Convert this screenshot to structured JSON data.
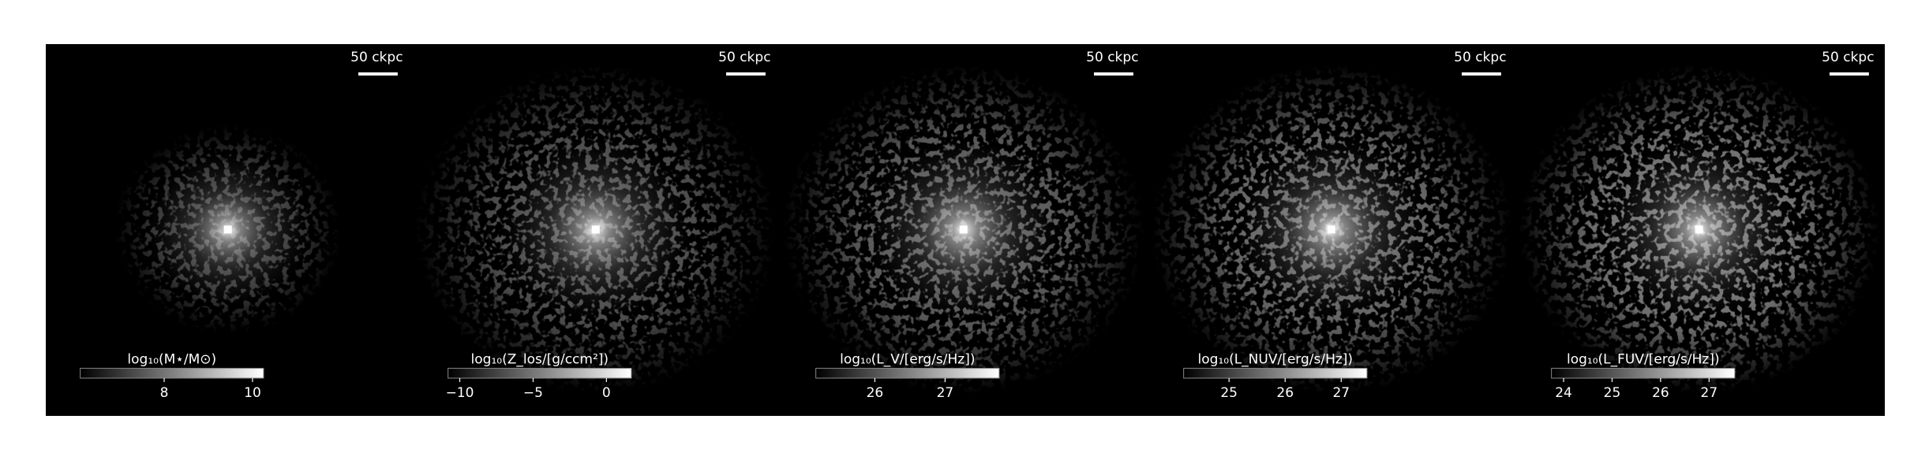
{
  "chart_data": [
    {
      "type": "image",
      "scalebar_label": "50 ckpc",
      "colorbar_label": "log₁₀(M⋆/M⊙)",
      "xlim": [
        6.1,
        10.25
      ],
      "xticks": [
        8,
        10
      ]
    },
    {
      "type": "image",
      "scalebar_label": "50 ckpc",
      "colorbar_label": "log₁₀(Z_los/[g/ccm²])",
      "xlim": [
        -10.8,
        1.7
      ],
      "xticks": [
        {
          "value": -10,
          "label": "−10"
        },
        {
          "value": -5,
          "label": "−5"
        },
        0
      ]
    },
    {
      "type": "image",
      "scalebar_label": "50 ckpc",
      "colorbar_label": "log₁₀(L_V/[erg/s/Hz])",
      "xlim": [
        25.16,
        27.77
      ],
      "xticks": [
        26,
        27
      ]
    },
    {
      "type": "image",
      "scalebar_label": "50 ckpc",
      "colorbar_label": "log₁₀(L_NUV/[erg/s/Hz])",
      "xlim": [
        24.19,
        27.46
      ],
      "xticks": [
        25,
        26,
        27
      ]
    },
    {
      "type": "image",
      "scalebar_label": "50 ckpc",
      "colorbar_label": "log₁₀(L_FUV/[erg/s/Hz])",
      "xlim": [
        23.75,
        27.53
      ],
      "xticks": [
        24,
        25,
        26,
        27
      ]
    }
  ]
}
